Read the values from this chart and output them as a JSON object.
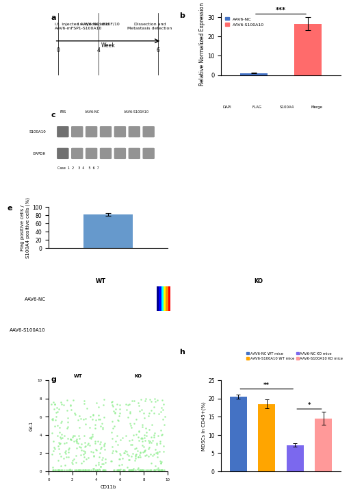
{
  "panel_b": {
    "categories": [
      "AAV6-NC",
      "AAV6-S100A10"
    ],
    "values": [
      1.0,
      26.5
    ],
    "errors": [
      0.1,
      3.5
    ],
    "colors": [
      "#4472C4",
      "#FF6B6B"
    ],
    "ylabel": "Relative Normalized Expression",
    "ylim": [
      0,
      32
    ],
    "yticks": [
      0,
      10,
      20,
      30
    ],
    "significance": "***",
    "legend_labels": [
      "AAV6-NC",
      "AAV6-S100A10"
    ]
  },
  "panel_e": {
    "categories": [
      ""
    ],
    "values": [
      82
    ],
    "errors": [
      3
    ],
    "color": "#6699CC",
    "ylabel": "Flag positive cells /\nS100A4 positive cells (%)",
    "ylim": [
      0,
      100
    ],
    "yticks": [
      0,
      20,
      40,
      60,
      80,
      100
    ]
  },
  "panel_h": {
    "categories": [
      "AAV6-NC\nWT mice",
      "AAV6-S100A10\nWT mice",
      "AAV6-NC\nKO mice",
      "AAV6-S100A10\nKO mice"
    ],
    "values": [
      20.5,
      18.5,
      7.2,
      14.5
    ],
    "errors": [
      0.6,
      1.2,
      0.5,
      1.8
    ],
    "colors": [
      "#4472C4",
      "#FFA500",
      "#7B68EE",
      "#FF9999"
    ],
    "ylabel": "MDSCs in CD45+(%)",
    "ylim": [
      0,
      25
    ],
    "yticks": [
      0,
      5,
      10,
      15,
      20,
      25
    ],
    "sig1": "**",
    "sig2": "*",
    "legend_labels": [
      "AAV6-NC WT mice",
      "AAV6-S100A10 WT mice",
      "AAV6-NC KO mice",
      "AAV6-S100A10 KO mice"
    ],
    "legend_colors": [
      "#4472C4",
      "#FFA500",
      "#7B68EE",
      "#FF9999"
    ]
  },
  "figure": {
    "bg_color": "#FFFFFF",
    "dpi": 100
  }
}
